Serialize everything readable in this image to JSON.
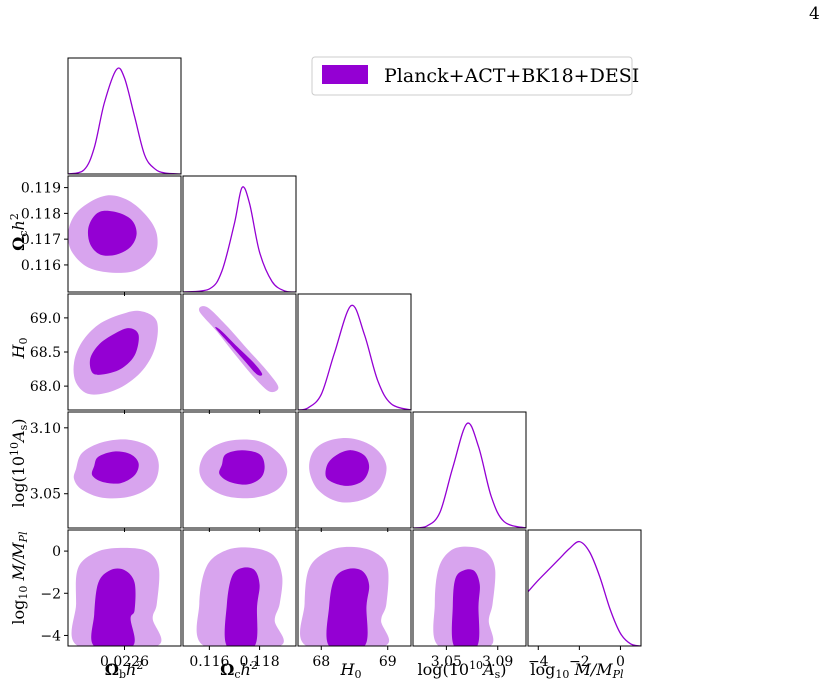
{
  "page_number": "4",
  "colors": {
    "series": "#9400D3",
    "inner_fill": "#9400D3",
    "outer_fill": "#D8A4EE",
    "axes": "#000000"
  },
  "chart_data": {
    "type": "corner",
    "legend": {
      "label": "Planck+ACT+BK18+DESI",
      "placement": "top-right"
    },
    "series": [
      {
        "name": "Planck+ACT+BK18+DESI"
      }
    ],
    "parameters": [
      {
        "key": "omb",
        "label": "Ω_b h²",
        "range": [
          0.02232,
          0.02288
        ],
        "ticks": [
          0.0226
        ],
        "ticklabels": [
          "0.0226"
        ],
        "mean": 0.02256,
        "sigma": 7e-05
      },
      {
        "key": "omc",
        "label": "Ω_c h²",
        "range": [
          0.11495,
          0.11945
        ],
        "ticks": [
          0.116,
          0.117,
          0.118,
          0.119
        ],
        "ticklabels": [
          "0.116",
          "0.117",
          "0.118",
          "0.119"
        ],
        "mean": 0.1173,
        "sigma": 0.00055
      },
      {
        "key": "h0",
        "label": "H₀",
        "range": [
          67.65,
          69.35
        ],
        "ticks": [
          68.0,
          68.5,
          69.0
        ],
        "ticklabels": [
          "68.0",
          "68.5",
          "69.0"
        ],
        "mean": 68.45,
        "sigma": 0.23
      },
      {
        "key": "las",
        "label": "log(10¹⁰A_s)",
        "range": [
          3.024,
          3.112
        ],
        "ticks": [
          3.05,
          3.1
        ],
        "ticklabels": [
          "3.05",
          "3.10"
        ],
        "mean": 3.066,
        "sigma": 0.0105
      },
      {
        "key": "mm",
        "label": "log₁₀ M/M_Pl",
        "range": [
          -4.5,
          1.0
        ],
        "ticks": [
          -4,
          -2,
          0
        ],
        "ticklabels": [
          "−4",
          "−2",
          "0"
        ],
        "mean": -1.9,
        "sigma": 1.5
      }
    ],
    "bottom_ticklabels": {
      "omb": [
        "0.0226"
      ],
      "omc": [
        "0.116",
        "0.118"
      ],
      "h0": [
        "68",
        "69"
      ],
      "las": [
        "3.05",
        "3.09"
      ],
      "mm": [
        "−4",
        "−2",
        "0"
      ]
    },
    "marginals": [
      {
        "param": "omb",
        "curve": [
          [
            0.02232,
            0.0
          ],
          [
            0.0224,
            0.04
          ],
          [
            0.02245,
            0.25
          ],
          [
            0.0225,
            0.68
          ],
          [
            0.02256,
            1.0
          ],
          [
            0.0226,
            0.92
          ],
          [
            0.02265,
            0.55
          ],
          [
            0.0227,
            0.18
          ],
          [
            0.02275,
            0.05
          ],
          [
            0.0228,
            0.01
          ],
          [
            0.02288,
            0.0
          ]
        ]
      },
      {
        "param": "omc",
        "curve": [
          [
            0.11495,
            0.0
          ],
          [
            0.116,
            0.03
          ],
          [
            0.1165,
            0.2
          ],
          [
            0.117,
            0.66
          ],
          [
            0.1173,
            1.0
          ],
          [
            0.1176,
            0.85
          ],
          [
            0.118,
            0.38
          ],
          [
            0.1185,
            0.1
          ],
          [
            0.119,
            0.01
          ],
          [
            0.11945,
            0.0
          ]
        ]
      },
      {
        "param": "h0",
        "curve": [
          [
            67.65,
            0.0
          ],
          [
            67.8,
            0.02
          ],
          [
            68.0,
            0.15
          ],
          [
            68.2,
            0.55
          ],
          [
            68.45,
            1.0
          ],
          [
            68.65,
            0.72
          ],
          [
            68.85,
            0.28
          ],
          [
            69.05,
            0.06
          ],
          [
            69.35,
            0.0
          ]
        ]
      },
      {
        "param": "las",
        "curve": [
          [
            3.024,
            0.0
          ],
          [
            3.035,
            0.02
          ],
          [
            3.045,
            0.15
          ],
          [
            3.055,
            0.58
          ],
          [
            3.066,
            1.0
          ],
          [
            3.075,
            0.78
          ],
          [
            3.085,
            0.3
          ],
          [
            3.095,
            0.06
          ],
          [
            3.112,
            0.0
          ]
        ]
      },
      {
        "param": "mm",
        "curve": [
          [
            -4.5,
            0.52
          ],
          [
            -4.0,
            0.63
          ],
          [
            -3.5,
            0.73
          ],
          [
            -3.0,
            0.83
          ],
          [
            -2.5,
            0.93
          ],
          [
            -2.0,
            1.0
          ],
          [
            -1.5,
            0.9
          ],
          [
            -1.0,
            0.66
          ],
          [
            -0.5,
            0.35
          ],
          [
            0.0,
            0.12
          ],
          [
            0.5,
            0.02
          ],
          [
            1.0,
            0.0
          ]
        ]
      }
    ],
    "contours": [
      {
        "x": "omb",
        "y": "omc",
        "inner": [
          [
            0.0225,
            0.1181
          ],
          [
            0.02258,
            0.118
          ],
          [
            0.02264,
            0.1177
          ],
          [
            0.02266,
            0.1172
          ],
          [
            0.02263,
            0.1167
          ],
          [
            0.02256,
            0.1164
          ],
          [
            0.02248,
            0.1164
          ],
          [
            0.02243,
            0.1168
          ],
          [
            0.02242,
            0.1174
          ],
          [
            0.02245,
            0.1179
          ]
        ],
        "outer": [
          [
            0.02242,
            0.1184
          ],
          [
            0.02252,
            0.1187
          ],
          [
            0.02262,
            0.1185
          ],
          [
            0.02271,
            0.1179
          ],
          [
            0.02276,
            0.1172
          ],
          [
            0.02275,
            0.1164
          ],
          [
            0.02266,
            0.1158
          ],
          [
            0.02254,
            0.1157
          ],
          [
            0.02242,
            0.1159
          ],
          [
            0.02234,
            0.1165
          ],
          [
            0.02232,
            0.1172
          ],
          [
            0.02235,
            0.1179
          ]
        ]
      },
      {
        "x": "omb",
        "y": "h0",
        "inner": [
          [
            0.02244,
            68.2
          ],
          [
            0.02243,
            68.4
          ],
          [
            0.02247,
            68.6
          ],
          [
            0.02254,
            68.75
          ],
          [
            0.02262,
            68.85
          ],
          [
            0.02267,
            68.75
          ],
          [
            0.02265,
            68.45
          ],
          [
            0.02258,
            68.25
          ],
          [
            0.02249,
            68.17
          ]
        ],
        "outer": [
          [
            0.02236,
            68.05
          ],
          [
            0.02235,
            68.35
          ],
          [
            0.02239,
            68.65
          ],
          [
            0.02247,
            68.9
          ],
          [
            0.02258,
            69.05
          ],
          [
            0.02268,
            69.1
          ],
          [
            0.02276,
            68.95
          ],
          [
            0.02275,
            68.55
          ],
          [
            0.02268,
            68.2
          ],
          [
            0.02256,
            67.95
          ],
          [
            0.02243,
            67.88
          ]
        ]
      },
      {
        "x": "omb",
        "y": "las",
        "inner": [
          [
            0.02245,
            3.071
          ],
          [
            0.02247,
            3.078
          ],
          [
            0.02255,
            3.082
          ],
          [
            0.02263,
            3.08
          ],
          [
            0.02267,
            3.073
          ],
          [
            0.02265,
            3.064
          ],
          [
            0.02258,
            3.058
          ],
          [
            0.02249,
            3.059
          ],
          [
            0.02244,
            3.064
          ]
        ],
        "outer": [
          [
            0.02236,
            3.069
          ],
          [
            0.02239,
            3.081
          ],
          [
            0.02249,
            3.089
          ],
          [
            0.02262,
            3.091
          ],
          [
            0.02273,
            3.085
          ],
          [
            0.02277,
            3.072
          ],
          [
            0.02274,
            3.057
          ],
          [
            0.02263,
            3.048
          ],
          [
            0.02249,
            3.047
          ],
          [
            0.02239,
            3.053
          ],
          [
            0.02235,
            3.061
          ]
        ]
      },
      {
        "x": "omb",
        "y": "mm",
        "inner": [
          [
            0.02245,
            -4.5
          ],
          [
            0.02245,
            -3.0
          ],
          [
            0.02247,
            -1.5
          ],
          [
            0.02253,
            -0.9
          ],
          [
            0.0226,
            -0.9
          ],
          [
            0.02265,
            -1.5
          ],
          [
            0.02265,
            -2.8
          ],
          [
            0.02263,
            -3.2
          ],
          [
            0.02264,
            -4.5
          ]
        ],
        "outer": [
          [
            0.02237,
            -4.5
          ],
          [
            0.02236,
            -2.5
          ],
          [
            0.02237,
            -0.8
          ],
          [
            0.02246,
            -0.05
          ],
          [
            0.02258,
            0.15
          ],
          [
            0.02271,
            0.0
          ],
          [
            0.02277,
            -0.8
          ],
          [
            0.02276,
            -2.5
          ],
          [
            0.02274,
            -3.2
          ],
          [
            0.02276,
            -4.5
          ]
        ]
      },
      {
        "x": "omc",
        "y": "h0",
        "inner": [
          [
            0.11625,
            68.85
          ],
          [
            0.1168,
            68.62
          ],
          [
            0.11745,
            68.35
          ],
          [
            0.1179,
            68.17
          ],
          [
            0.1181,
            68.18
          ],
          [
            0.11775,
            68.35
          ],
          [
            0.11705,
            68.6
          ],
          [
            0.11645,
            68.82
          ]
        ],
        "outer": [
          [
            0.1156,
            69.1
          ],
          [
            0.1163,
            68.8
          ],
          [
            0.11705,
            68.45
          ],
          [
            0.1178,
            68.12
          ],
          [
            0.1184,
            67.92
          ],
          [
            0.11875,
            67.98
          ],
          [
            0.11835,
            68.2
          ],
          [
            0.1175,
            68.55
          ],
          [
            0.11665,
            68.9
          ],
          [
            0.1159,
            69.16
          ]
        ]
      },
      {
        "x": "omc",
        "y": "las",
        "inner": [
          [
            0.1165,
            3.072
          ],
          [
            0.11665,
            3.08
          ],
          [
            0.1173,
            3.083
          ],
          [
            0.118,
            3.08
          ],
          [
            0.1182,
            3.071
          ],
          [
            0.11805,
            3.062
          ],
          [
            0.1175,
            3.057
          ],
          [
            0.1168,
            3.059
          ],
          [
            0.1164,
            3.065
          ]
        ],
        "outer": [
          [
            0.1156,
            3.068
          ],
          [
            0.1159,
            3.082
          ],
          [
            0.11675,
            3.09
          ],
          [
            0.11795,
            3.09
          ],
          [
            0.1188,
            3.08
          ],
          [
            0.1191,
            3.066
          ],
          [
            0.1187,
            3.053
          ],
          [
            0.1178,
            3.047
          ],
          [
            0.1167,
            3.048
          ],
          [
            0.1159,
            3.056
          ]
        ]
      },
      {
        "x": "omc",
        "y": "mm",
        "inner": [
          [
            0.1167,
            -4.5
          ],
          [
            0.1167,
            -2.5
          ],
          [
            0.1169,
            -1.2
          ],
          [
            0.1173,
            -0.8
          ],
          [
            0.1178,
            -0.9
          ],
          [
            0.118,
            -1.6
          ],
          [
            0.1179,
            -2.6
          ],
          [
            0.1178,
            -4.5
          ]
        ],
        "outer": [
          [
            0.1158,
            -4.5
          ],
          [
            0.1156,
            -2.5
          ],
          [
            0.1159,
            -0.7
          ],
          [
            0.1167,
            0.05
          ],
          [
            0.1177,
            0.15
          ],
          [
            0.11855,
            -0.2
          ],
          [
            0.1189,
            -1.2
          ],
          [
            0.1188,
            -2.5
          ],
          [
            0.1186,
            -3.3
          ],
          [
            0.1188,
            -4.5
          ]
        ]
      },
      {
        "x": "h0",
        "y": "las",
        "inner": [
          [
            68.07,
            3.063
          ],
          [
            68.1,
            3.073
          ],
          [
            68.25,
            3.08
          ],
          [
            68.45,
            3.083
          ],
          [
            68.65,
            3.079
          ],
          [
            68.72,
            3.07
          ],
          [
            68.63,
            3.06
          ],
          [
            68.42,
            3.056
          ],
          [
            68.2,
            3.058
          ]
        ],
        "outer": [
          [
            67.82,
            3.068
          ],
          [
            67.88,
            3.082
          ],
          [
            68.1,
            3.09
          ],
          [
            68.45,
            3.092
          ],
          [
            68.8,
            3.085
          ],
          [
            68.98,
            3.071
          ],
          [
            68.88,
            3.054
          ],
          [
            68.6,
            3.045
          ],
          [
            68.25,
            3.044
          ],
          [
            67.95,
            3.053
          ]
        ]
      },
      {
        "x": "h0",
        "y": "mm",
        "inner": [
          [
            68.12,
            -4.5
          ],
          [
            68.12,
            -2.6
          ],
          [
            68.2,
            -1.3
          ],
          [
            68.4,
            -0.85
          ],
          [
            68.62,
            -0.95
          ],
          [
            68.72,
            -1.6
          ],
          [
            68.68,
            -2.6
          ],
          [
            68.65,
            -4.5
          ]
        ],
        "outer": [
          [
            67.78,
            -4.5
          ],
          [
            67.75,
            -2.5
          ],
          [
            67.82,
            -0.8
          ],
          [
            68.1,
            0.0
          ],
          [
            68.45,
            0.2
          ],
          [
            68.8,
            -0.05
          ],
          [
            69.0,
            -0.8
          ],
          [
            68.98,
            -2.5
          ],
          [
            68.9,
            -3.3
          ],
          [
            68.95,
            -4.5
          ]
        ]
      },
      {
        "x": "las",
        "y": "mm",
        "inner": [
          [
            3.056,
            -4.5
          ],
          [
            3.055,
            -2.6
          ],
          [
            3.057,
            -1.3
          ],
          [
            3.064,
            -0.9
          ],
          [
            3.072,
            -0.95
          ],
          [
            3.076,
            -1.6
          ],
          [
            3.075,
            -2.6
          ],
          [
            3.074,
            -4.5
          ]
        ],
        "outer": [
          [
            3.044,
            -4.5
          ],
          [
            3.041,
            -2.5
          ],
          [
            3.044,
            -0.8
          ],
          [
            3.054,
            0.05
          ],
          [
            3.069,
            0.2
          ],
          [
            3.082,
            -0.1
          ],
          [
            3.088,
            -0.9
          ],
          [
            3.086,
            -2.5
          ],
          [
            3.083,
            -3.3
          ],
          [
            3.084,
            -4.5
          ]
        ]
      }
    ]
  }
}
